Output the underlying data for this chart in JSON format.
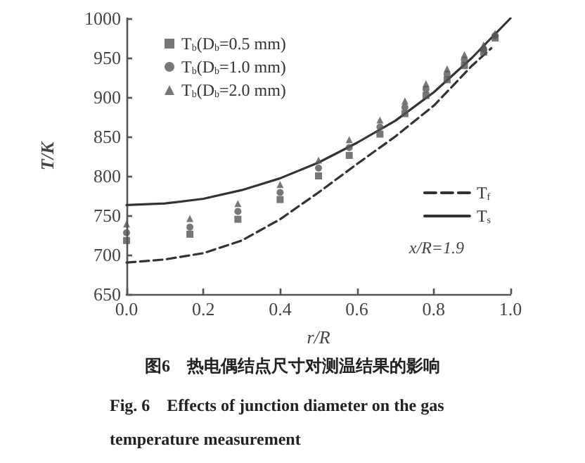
{
  "chart_data": {
    "type": "scatter",
    "title": "图6　热电偶结点尺寸对测温结果的影响",
    "subtitle": "Fig. 6　Effects of junction diameter on the gas temperature measurement",
    "xlabel": "r/R",
    "ylabel": "T/K",
    "x": [
      0,
      0.165,
      0.29,
      0.4,
      0.5,
      0.58,
      0.66,
      0.725,
      0.78,
      0.835,
      0.88,
      0.93,
      0.96
    ],
    "series": [
      {
        "name": "T$_{b}$(D$_{b}$=0.5 mm)",
        "color": "#555555",
        "marker": "square",
        "values": [
          718,
          726,
          745,
          770,
          800,
          826,
          853,
          879,
          902,
          922,
          940,
          957,
          975
        ]
      },
      {
        "name": "T$_{b}$(D$_{b}$=1.0 mm)",
        "color": "#555555",
        "marker": "circle",
        "values": [
          728,
          735,
          755,
          779,
          810,
          836,
          862,
          887,
          910,
          929,
          947,
          961,
          978
        ]
      },
      {
        "name": "T$_{b}$(D$_{b}$=2.0 mm)",
        "color": "#555555",
        "marker": "triangle",
        "values": [
          739,
          746,
          765,
          789,
          820,
          846,
          871,
          895,
          917,
          936,
          954,
          966,
          981
        ]
      },
      {
        "name": "T$_{f}$",
        "type": "line",
        "color": "#333333",
        "line_style": "dashed",
        "marker": "none",
        "x": [
          0,
          0.1,
          0.2,
          0.3,
          0.4,
          0.5,
          0.6,
          0.7,
          0.8,
          0.9,
          0.95
        ],
        "values": [
          690,
          694,
          702,
          718,
          745,
          779,
          815,
          850,
          889,
          940,
          962
        ]
      },
      {
        "name": "T$_{s}$",
        "type": "line",
        "color": "#333333",
        "line_style": "solid",
        "marker": "none",
        "x": [
          0,
          0.1,
          0.2,
          0.3,
          0.4,
          0.5,
          0.6,
          0.7,
          0.8,
          0.9,
          1.0
        ],
        "values": [
          763,
          765,
          771,
          782,
          797,
          817,
          842,
          870,
          906,
          950,
          1000
        ]
      }
    ],
    "annotations": [
      "x/R=1.9"
    ],
    "xlim": [
      0,
      1
    ],
    "xticks": [
      {
        "value": 0,
        "label": "0.0"
      },
      0.2,
      0.4,
      0.6,
      0.8,
      {
        "value": 1,
        "label": "1.0"
      }
    ],
    "ylim": [
      650,
      1000
    ],
    "yticks": [
      650,
      700,
      750,
      800,
      850,
      900,
      950,
      1000
    ],
    "legend": "top left",
    "grid": false
  }
}
